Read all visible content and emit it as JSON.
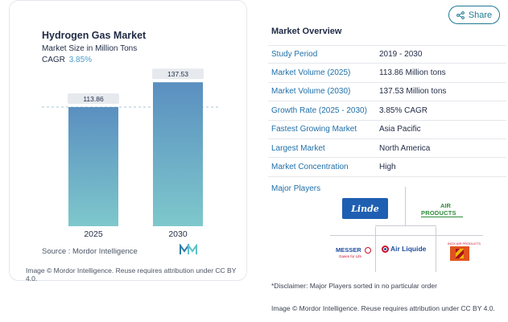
{
  "share": {
    "label": "Share",
    "icon": "share-icon"
  },
  "chart": {
    "title": "Hydrogen Gas Market",
    "subtitle": "Market Size in Million Tons",
    "cagr_label": "CAGR",
    "cagr_value": "3.85%",
    "source": "Source :  Mordor Intelligence",
    "attribution": "Image © Mordor Intelligence. Reuse requires attribution under CC BY 4.0.",
    "logo_icon": "mordor-intelligence-logo",
    "colors": {
      "bar_top": "#5a8fc0",
      "bar_bottom": "#7ec8cc",
      "label_bg": "#e6eaee",
      "dashed_line": "#a9c6d6"
    }
  },
  "chart_data": {
    "type": "bar",
    "categories": [
      "2025",
      "2030"
    ],
    "values": [
      113.86,
      137.53
    ],
    "value_labels": [
      "113.86",
      "137.53"
    ],
    "title": "Hydrogen Gas Market",
    "ylabel": "Market Size in Million Tons",
    "ylim": [
      0,
      150
    ],
    "grid": false,
    "reference_line": 113.86
  },
  "overview": {
    "title": "Market Overview",
    "rows": [
      {
        "label": "Study Period",
        "value": "2019 - 2030"
      },
      {
        "label": "Market Volume (2025)",
        "value": "113.86 Million tons"
      },
      {
        "label": "Market Volume (2030)",
        "value": "137.53 Million tons"
      },
      {
        "label": "Growth Rate (2025 - 2030)",
        "value": "3.85% CAGR"
      },
      {
        "label": "Fastest Growing Market",
        "value": "Asia Pacific"
      },
      {
        "label": "Largest Market",
        "value": "North America"
      },
      {
        "label": "Market Concentration",
        "value": "High"
      }
    ]
  },
  "players": {
    "title": "Major Players",
    "logos": [
      {
        "name": "Linde",
        "text": "Linde"
      },
      {
        "name": "Air Products",
        "text_top": "AIR",
        "text_bottom": "PRODUCTS"
      },
      {
        "name": "Messer",
        "text": "MESSER",
        "subtext": "Gases for Life"
      },
      {
        "name": "Air Liquide",
        "text": "Air Liquide"
      },
      {
        "name": "INOX Air Products",
        "text": "INOX AIR PRODUCTS"
      }
    ]
  },
  "disclaimer": "*Disclaimer: Major Players sorted in no particular order",
  "attribution": "Image © Mordor Intelligence. Reuse requires attribution under CC BY 4.0."
}
